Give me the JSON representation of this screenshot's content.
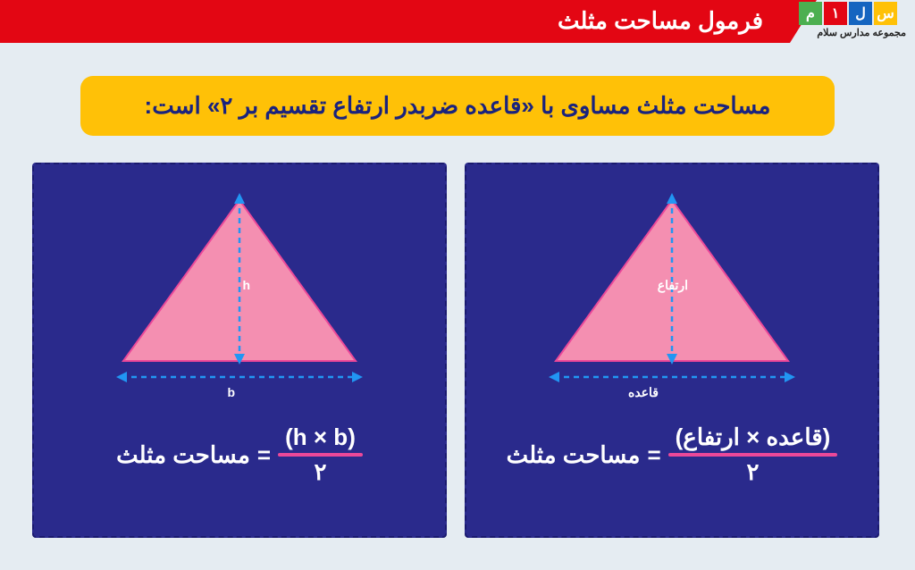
{
  "header": {
    "title": "فرمول مساحت مثلث",
    "logo": {
      "boxes": [
        {
          "letter": "س",
          "bg": "#ffc107"
        },
        {
          "letter": "ل",
          "bg": "#1565c0"
        },
        {
          "letter": "۱",
          "bg": "#e30613"
        },
        {
          "letter": "م",
          "bg": "#4caf50"
        }
      ],
      "subtitle": "مجموعه مدارس سلام"
    }
  },
  "callout": {
    "text": "مساحت مثلث مساوی با «قاعده ضربدر ارتفاع تقسیم بر ۲» است:",
    "bg": "#ffc107",
    "text_color": "#1a237e"
  },
  "panels": {
    "bg": "#2a2a8c",
    "border_color": "#1a1a6e",
    "triangle_fill": "#f48fb1",
    "triangle_stroke": "#ec4899",
    "arrow_color": "#2196f3",
    "right": {
      "height_label": "ارتفاع",
      "base_label": "قاعده",
      "formula_lhs": "مساحت مثلث",
      "formula_rhs_top": "(قاعده × ارتفاع)",
      "formula_rhs_bot": "۲"
    },
    "left": {
      "height_label": "h",
      "base_label": "b",
      "formula_lhs": "مساحت مثلث",
      "formula_rhs_top": "(h × b)",
      "formula_rhs_bot": "۲"
    }
  },
  "colors": {
    "page_bg": "#e5ecf2",
    "red": "#e30613",
    "underline": "#ec4899"
  }
}
